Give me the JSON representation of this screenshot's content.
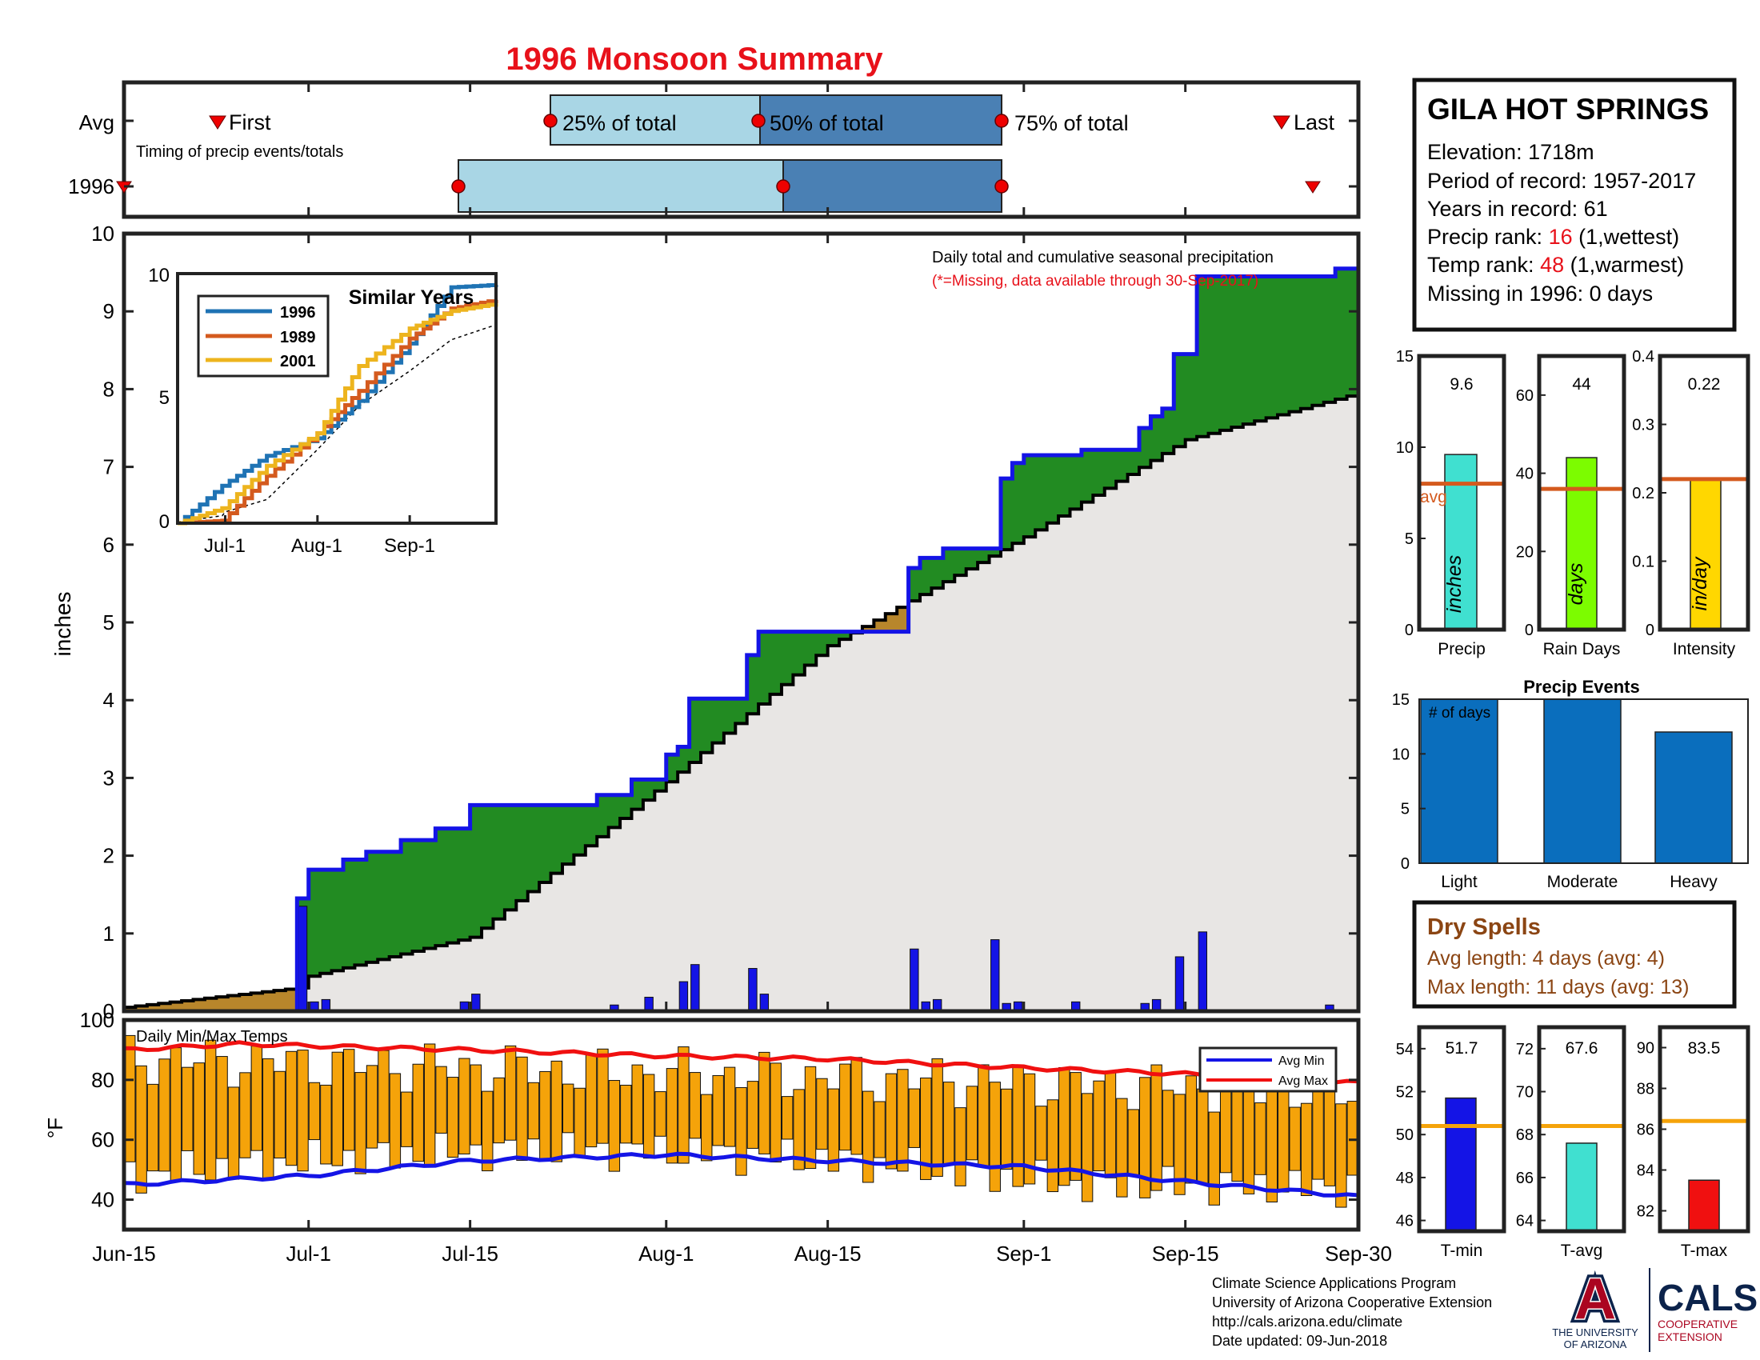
{
  "title": "1996 Monsoon Summary",
  "timing": {
    "row_labels": [
      "Avg",
      "1996"
    ],
    "first_label": "First",
    "last_label": "Last",
    "subtitle": "Timing of precip events/totals",
    "q25_label": "25% of total",
    "q50_label": "50% of total",
    "q75_label": "75% of total"
  },
  "main_plot": {
    "ylabel": "inches",
    "legend_title": "Daily total and cumulative seasonal precipitation",
    "legend_note": "(*=Missing, data available through 30-Sep-2017)",
    "x_ticks": [
      "Jun-15",
      "Jul-1",
      "Jul-15",
      "Aug-1",
      "Aug-15",
      "Sep-1",
      "Sep-15",
      "Sep-30"
    ],
    "y_ticks": [
      "0",
      "1",
      "2",
      "3",
      "4",
      "5",
      "6",
      "7",
      "8",
      "9",
      "10"
    ]
  },
  "similar_years": {
    "title": "Similar Years",
    "series_names": [
      "1996",
      "1989",
      "2001"
    ],
    "x_ticks": [
      "Jul-1",
      "Aug-1",
      "Sep-1"
    ],
    "y_ticks": [
      "0",
      "5",
      "10"
    ]
  },
  "temp_plot": {
    "label": "Daily Min/Max Temps",
    "ylabel": "°F",
    "y_ticks": [
      "40",
      "60",
      "80",
      "100"
    ],
    "legend_min": "Avg Min",
    "legend_max": "Avg Max"
  },
  "station": {
    "name": "GILA HOT SPRINGS",
    "elevation": "Elevation: 1718m",
    "period": "Period of record: 1957-2017",
    "years": "Years in record: 61",
    "precip_rank_label": "Precip rank: ",
    "precip_rank_value": "16",
    "precip_rank_note": " (1,wettest)",
    "temp_rank_label": "Temp rank: ",
    "temp_rank_value": "48",
    "temp_rank_note": " (1,warmest)",
    "missing": "Missing in 1996: 0 days"
  },
  "mini_bars": {
    "precip": {
      "value_label": "9.6",
      "unit": "inches",
      "xlabel": "Precip",
      "avg_label": "avg",
      "ticks": [
        "0",
        "5",
        "10",
        "15"
      ]
    },
    "rain_days": {
      "value_label": "44",
      "unit": "days",
      "xlabel": "Rain Days",
      "ticks": [
        "0",
        "20",
        "40",
        "60"
      ]
    },
    "intensity": {
      "value_label": "0.22",
      "unit": "in/day",
      "xlabel": "Intensity",
      "ticks": [
        "0",
        "0.1",
        "0.2",
        "0.3",
        "0.4"
      ]
    }
  },
  "precip_events": {
    "title": "Precip Events",
    "ylabel_inside": "# of days",
    "categories": [
      "Light",
      "Moderate",
      "Heavy"
    ],
    "ticks": [
      "0",
      "5",
      "10",
      "15"
    ]
  },
  "dry_spells": {
    "title": "Dry Spells",
    "avg_length": "Avg length: 4 days (avg: 4)",
    "max_length": "Max length: 11 days (avg: 13)"
  },
  "temp_bars": {
    "tmin": {
      "value_label": "51.7",
      "xlabel": "T-min",
      "ticks": [
        "46",
        "48",
        "50",
        "52",
        "54"
      ]
    },
    "tavg": {
      "value_label": "67.6",
      "xlabel": "T-avg",
      "ticks": [
        "64",
        "66",
        "68",
        "70",
        "72"
      ]
    },
    "tmax": {
      "value_label": "83.5",
      "xlabel": "T-max",
      "ticks": [
        "82",
        "84",
        "86",
        "88",
        "90"
      ]
    }
  },
  "footer": {
    "line1": "Climate Science Applications Program",
    "line2": "University of Arizona Cooperative Extension",
    "line3": "http://cals.arizona.edu/climate",
    "line4": " Date updated: 09-Jun-2018",
    "ua_letter": "A",
    "ua_text1": "THE UNIVERSITY",
    "ua_text2": "OF ARIZONA",
    "cals_text": "CALS",
    "cals_sub1": "COOPERATIVE",
    "cals_sub2": "EXTENSION"
  },
  "colors": {
    "title": "#e8111a",
    "observed_line": "#1414e6",
    "above_avg_fill": "#228b22",
    "below_avg_fill": "#b8862b",
    "avg_fill": "#e8e6e4",
    "daily_bar": "#1414e6",
    "temp_bar": "#f5a30a",
    "avg_min_line": "#1414e6",
    "avg_max_line": "#f01010",
    "timing_light": "#a9d6e5",
    "timing_dark": "#4a80b4",
    "precip_bar": "#40e0d0",
    "rain_days_bar": "#7cfc00",
    "intensity_bar": "#ffd700",
    "avg_line": "#d45a1e",
    "events_bar": "#0a6ebd",
    "dry_text": "#8b4513",
    "tmin_bar": "#1414e6",
    "tavg_bar": "#40e0d0",
    "tmax_bar": "#f01010",
    "temp_avg_line": "#f5a30a"
  },
  "chart_data": [
    {
      "type": "area",
      "name": "cumulative_precip",
      "xlabel": "",
      "ylabel": "inches",
      "ylim": [
        0,
        10
      ],
      "x_range": [
        "Jun-15",
        "Sep-30"
      ],
      "observed_cumulative": [
        [
          "Jun-15",
          0.0
        ],
        [
          "Jun-29",
          0.0
        ],
        [
          "Jun-30",
          1.45
        ],
        [
          "Jul-1",
          1.82
        ],
        [
          "Jul-4",
          1.95
        ],
        [
          "Jul-6",
          2.05
        ],
        [
          "Jul-9",
          2.2
        ],
        [
          "Jul-12",
          2.35
        ],
        [
          "Jul-15",
          2.65
        ],
        [
          "Jul-25",
          2.65
        ],
        [
          "Jul-26",
          2.78
        ],
        [
          "Jul-29",
          2.98
        ],
        [
          "Aug-1",
          3.3
        ],
        [
          "Aug-2",
          3.4
        ],
        [
          "Aug-3",
          4.02
        ],
        [
          "Aug-7",
          4.02
        ],
        [
          "Aug-8",
          4.58
        ],
        [
          "Aug-9",
          4.88
        ],
        [
          "Aug-21",
          4.88
        ],
        [
          "Aug-22",
          5.7
        ],
        [
          "Aug-23",
          5.83
        ],
        [
          "Aug-25",
          5.95
        ],
        [
          "Aug-29",
          5.95
        ],
        [
          "Aug-30",
          6.85
        ],
        [
          "Aug-31",
          7.05
        ],
        [
          "Sep-1",
          7.15
        ],
        [
          "Sep-6",
          7.22
        ],
        [
          "Sep-11",
          7.5
        ],
        [
          "Sep-12",
          7.65
        ],
        [
          "Sep-13",
          7.75
        ],
        [
          "Sep-14",
          8.45
        ],
        [
          "Sep-15",
          8.45
        ],
        [
          "Sep-16",
          9.45
        ],
        [
          "Sep-27",
          9.45
        ],
        [
          "Sep-28",
          9.55
        ],
        [
          "Sep-30",
          9.55
        ]
      ],
      "average_cumulative": [
        [
          "Jun-15",
          0.05
        ],
        [
          "Jun-30",
          0.3
        ],
        [
          "Jul-1",
          0.45
        ],
        [
          "Jul-15",
          0.95
        ],
        [
          "Aug-1",
          2.95
        ],
        [
          "Aug-15",
          4.7
        ],
        [
          "Sep-1",
          6.1
        ],
        [
          "Sep-15",
          7.35
        ],
        [
          "Sep-30",
          7.95
        ]
      ]
    },
    {
      "type": "bar",
      "name": "daily_precip",
      "ylabel": "inches",
      "values": [
        [
          "Jun-30",
          1.35
        ],
        [
          "Jul-1",
          0.12
        ],
        [
          "Jul-2",
          0.15
        ],
        [
          "Jul-14",
          0.12
        ],
        [
          "Jul-15",
          0.22
        ],
        [
          "Jul-27",
          0.08
        ],
        [
          "Jul-30",
          0.18
        ],
        [
          "Aug-2",
          0.38
        ],
        [
          "Aug-3",
          0.6
        ],
        [
          "Aug-8",
          0.55
        ],
        [
          "Aug-9",
          0.22
        ],
        [
          "Aug-22",
          0.8
        ],
        [
          "Aug-23",
          0.12
        ],
        [
          "Aug-24",
          0.15
        ],
        [
          "Aug-29",
          0.92
        ],
        [
          "Aug-30",
          0.1
        ],
        [
          "Aug-31",
          0.12
        ],
        [
          "Sep-5",
          0.12
        ],
        [
          "Sep-11",
          0.1
        ],
        [
          "Sep-12",
          0.15
        ],
        [
          "Sep-14",
          0.7
        ],
        [
          "Sep-16",
          1.02
        ],
        [
          "Sep-27",
          0.08
        ]
      ]
    },
    {
      "type": "line",
      "name": "similar_years",
      "ylim": [
        0,
        10
      ],
      "series": [
        {
          "name": "1996",
          "values": [
            [
              "Jun-15",
              0
            ],
            [
              "Jun-30",
              1.5
            ],
            [
              "Jul-15",
              2.7
            ],
            [
              "Aug-1",
              3.4
            ],
            [
              "Aug-15",
              4.9
            ],
            [
              "Sep-1",
              7.2
            ],
            [
              "Sep-15",
              9.45
            ],
            [
              "Sep-30",
              9.55
            ]
          ]
        },
        {
          "name": "1989",
          "values": [
            [
              "Jun-15",
              0
            ],
            [
              "Jun-30",
              0.1
            ],
            [
              "Jul-15",
              1.9
            ],
            [
              "Aug-1",
              3.6
            ],
            [
              "Aug-15",
              5.3
            ],
            [
              "Sep-1",
              7.4
            ],
            [
              "Sep-15",
              8.6
            ],
            [
              "Sep-30",
              8.95
            ]
          ]
        },
        {
          "name": "2001",
          "values": [
            [
              "Jun-15",
              0
            ],
            [
              "Jun-30",
              0.6
            ],
            [
              "Jul-15",
              2.3
            ],
            [
              "Aug-1",
              3.6
            ],
            [
              "Aug-15",
              6.3
            ],
            [
              "Sep-1",
              7.8
            ],
            [
              "Sep-15",
              8.5
            ],
            [
              "Sep-30",
              8.8
            ]
          ]
        }
      ]
    },
    {
      "type": "bar",
      "name": "daily_temps",
      "ylim": [
        30,
        100
      ],
      "avg_min": [
        [
          "Jun-15",
          45
        ],
        [
          "Jul-1",
          48
        ],
        [
          "Jul-15",
          53
        ],
        [
          "Aug-1",
          55
        ],
        [
          "Aug-15",
          53
        ],
        [
          "Sep-1",
          51
        ],
        [
          "Sep-15",
          46
        ],
        [
          "Sep-30",
          41
        ]
      ],
      "avg_max": [
        [
          "Jun-15",
          90
        ],
        [
          "Jun-25",
          92
        ],
        [
          "Jul-15",
          90
        ],
        [
          "Aug-1",
          88
        ],
        [
          "Aug-15",
          87
        ],
        [
          "Sep-1",
          84
        ],
        [
          "Sep-15",
          82
        ],
        [
          "Sep-30",
          79
        ]
      ]
    },
    {
      "type": "bar",
      "name": "season_totals",
      "categories": [
        "Precip",
        "Rain Days",
        "Intensity"
      ],
      "values": [
        9.6,
        44,
        0.22
      ],
      "averages": [
        8.0,
        36,
        0.22
      ],
      "ylims": [
        [
          0,
          15
        ],
        [
          0,
          70
        ],
        [
          0,
          0.4
        ]
      ]
    },
    {
      "type": "bar",
      "name": "precip_events",
      "categories": [
        "Light",
        "Moderate",
        "Heavy"
      ],
      "values": [
        15,
        15,
        12
      ],
      "ylim": [
        0,
        15
      ]
    },
    {
      "type": "bar",
      "name": "temperature_averages",
      "categories": [
        "T-min",
        "T-avg",
        "T-max"
      ],
      "values": [
        51.7,
        67.6,
        83.5
      ],
      "averages": [
        50.4,
        68.4,
        86.4
      ],
      "ylims": [
        [
          45.5,
          55
        ],
        [
          63.5,
          73
        ],
        [
          81,
          91
        ]
      ]
    }
  ]
}
